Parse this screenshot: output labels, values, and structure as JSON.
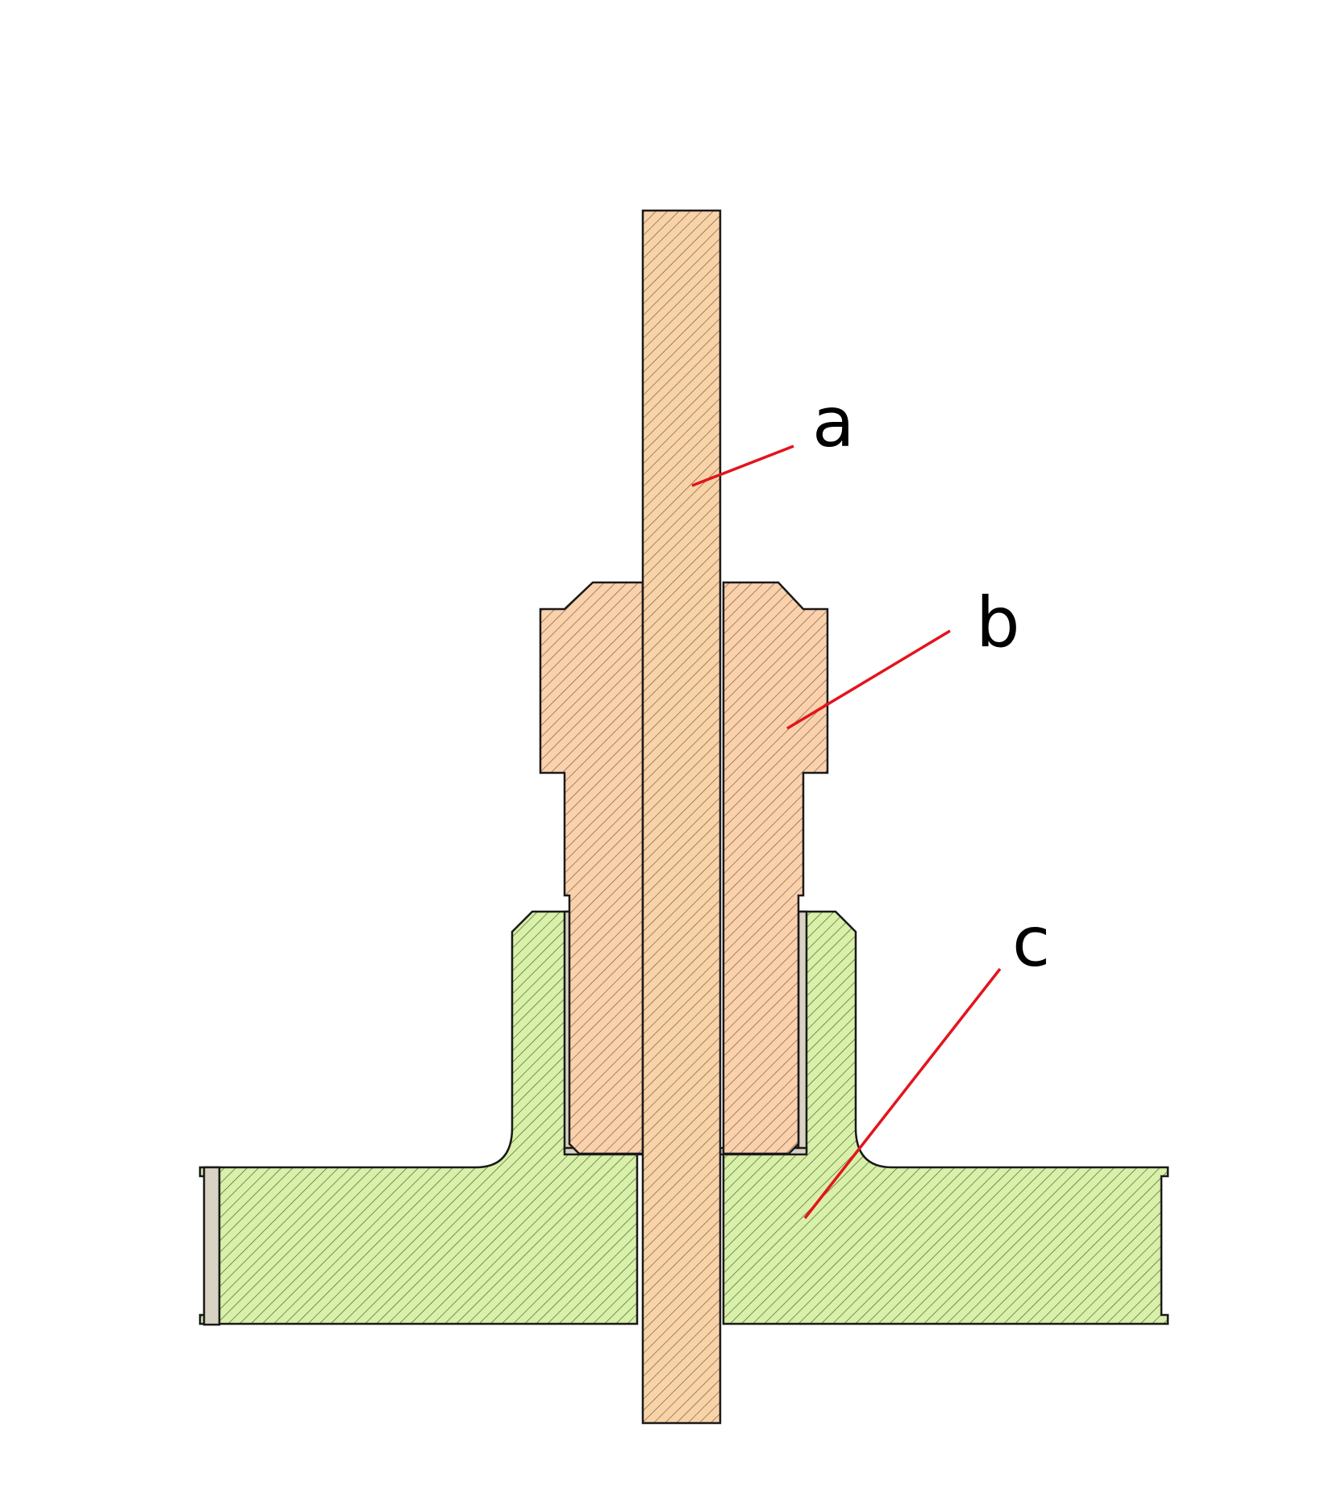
{
  "diagram": {
    "parts": [
      {
        "id": "a",
        "label": "a",
        "color": "#f9d3a8",
        "hatch": "#6e5a44"
      },
      {
        "id": "b",
        "label": "b",
        "color": "#fbd1ac",
        "hatch": "#6e5a44"
      },
      {
        "id": "c",
        "label": "c",
        "color": "#d8f0a8",
        "hatch": "#4a5a34"
      }
    ],
    "gap_fill_color": "#d8d3c2",
    "outline_color": "#1a1a1a",
    "leader_color": "#e3141c"
  }
}
